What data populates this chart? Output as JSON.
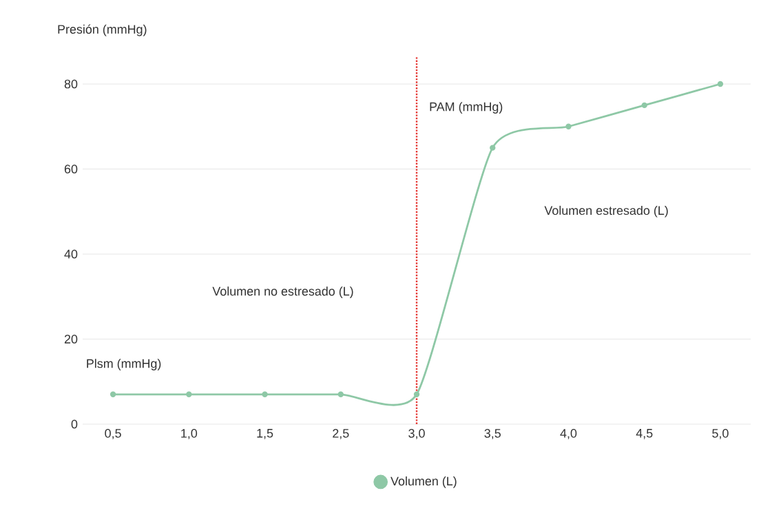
{
  "chart_data": {
    "type": "line",
    "ylabel": "Presión (mmHg)",
    "categories": [
      "0,5",
      "1,0",
      "1,5",
      "2,5",
      "3,0",
      "3,5",
      "4,0",
      "4,5",
      "5,0"
    ],
    "series": [
      {
        "name": "Volumen (L)",
        "color": "#8ec8a6",
        "values": [
          7,
          7,
          7,
          7,
          7,
          65,
          70,
          75,
          80
        ]
      }
    ],
    "ylim": [
      0,
      80
    ],
    "yticks": [
      0,
      20,
      40,
      60,
      80
    ],
    "grid": "y",
    "legend": "bottom",
    "marker": "circle",
    "line_style": "solid",
    "ref_lines": [
      {
        "axis": "x",
        "value": "3,0",
        "label": "PAM (mmHg)",
        "color": "#e53935",
        "line_style": "dotted"
      }
    ],
    "annotations": [
      "Volumen estresado (L)",
      "Volumen no estresado (L)",
      "Plsm (mmHg)"
    ]
  }
}
